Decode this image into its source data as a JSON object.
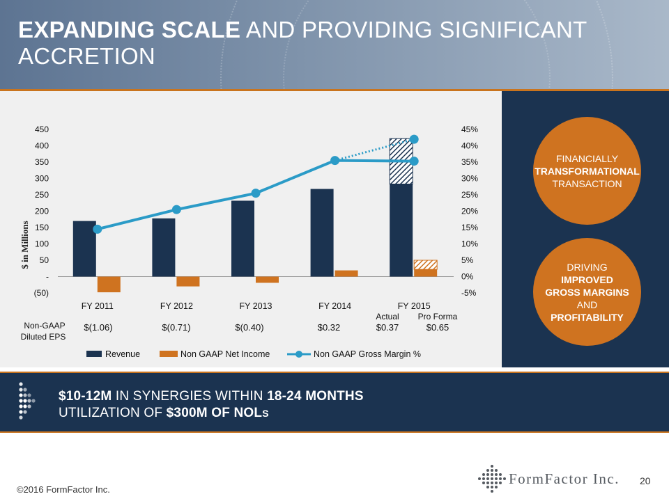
{
  "header": {
    "title_bold": "EXPANDING SCALE",
    "title_rest": "AND PROVIDING SIGNIFICANT ACCRETION"
  },
  "colors": {
    "navy": "#1b3350",
    "orange": "#cf7320",
    "teal": "#2b9bc7",
    "chart_bg": "#f0f0f0"
  },
  "chart_data": {
    "type": "bar+line",
    "categories": [
      "FY 2011",
      "FY 2012",
      "FY 2013",
      "FY 2014",
      "FY 2015"
    ],
    "y_left": {
      "label": "$ in Millions",
      "min": -50,
      "max": 450,
      "ticks": [
        450,
        400,
        350,
        300,
        250,
        200,
        150,
        100,
        50,
        0,
        -50
      ],
      "tick_labels": [
        "450",
        "400",
        "350",
        "300",
        "250",
        "200",
        "150",
        "100",
        "50",
        "-",
        "(50)"
      ]
    },
    "y_right": {
      "min": -5,
      "max": 45,
      "ticks": [
        45,
        40,
        35,
        30,
        25,
        20,
        15,
        10,
        5,
        0,
        -5
      ],
      "tick_labels": [
        "45%",
        "40%",
        "35%",
        "30%",
        "25%",
        "20%",
        "15%",
        "10%",
        "5%",
        "0%",
        "-5%"
      ]
    },
    "series": [
      {
        "name": "Revenue",
        "type": "bar",
        "values": [
          170,
          178,
          232,
          268,
          283
        ],
        "pro_forma_values": [
          null,
          null,
          null,
          null,
          422
        ]
      },
      {
        "name": "Non GAAP Net Income",
        "type": "bar",
        "values": [
          -48,
          -30,
          -19,
          19,
          22
        ],
        "pro_forma_values": [
          null,
          null,
          null,
          null,
          50
        ]
      },
      {
        "name": "Non GAAP Gross Margin %",
        "type": "line",
        "values": [
          14.5,
          20.5,
          25.5,
          35.5,
          35.3
        ],
        "pro_forma_last": 42
      }
    ],
    "fy2015_sublabels": [
      "Actual",
      "Pro Forma"
    ],
    "eps": {
      "label_line1": "Non-GAAP",
      "label_line2": "Diluted EPS",
      "values": [
        "$(1.06)",
        "$(0.71)",
        "$(0.40)",
        "$0.32",
        "$0.37",
        "$0.65"
      ]
    },
    "legend": [
      "Revenue",
      "Non GAAP Net Income",
      "Non GAAP Gross Margin %"
    ]
  },
  "sidebar": {
    "circle1": {
      "line1": "FINANCIALLY",
      "line2": "TRANSFORMATIONAL",
      "line3": "TRANSACTION"
    },
    "circle2": {
      "line1": "DRIVING",
      "line2": "IMPROVED",
      "line3": "GROSS MARGINS",
      "line4": "AND",
      "line5": "PROFITABILITY"
    }
  },
  "banner": {
    "l1_bold1": "$10-12M",
    "l1_mid": "IN SYNERGIES WITHIN",
    "l1_bold2": "18-24 MONTHS",
    "l2_start": "UTILIZATION OF",
    "l2_bold": "$300M OF NOL",
    "l2_tail": "S"
  },
  "footer": {
    "copyright": "©2016 FormFactor Inc.",
    "page": "20",
    "logo_text": "FormFactor Inc."
  }
}
